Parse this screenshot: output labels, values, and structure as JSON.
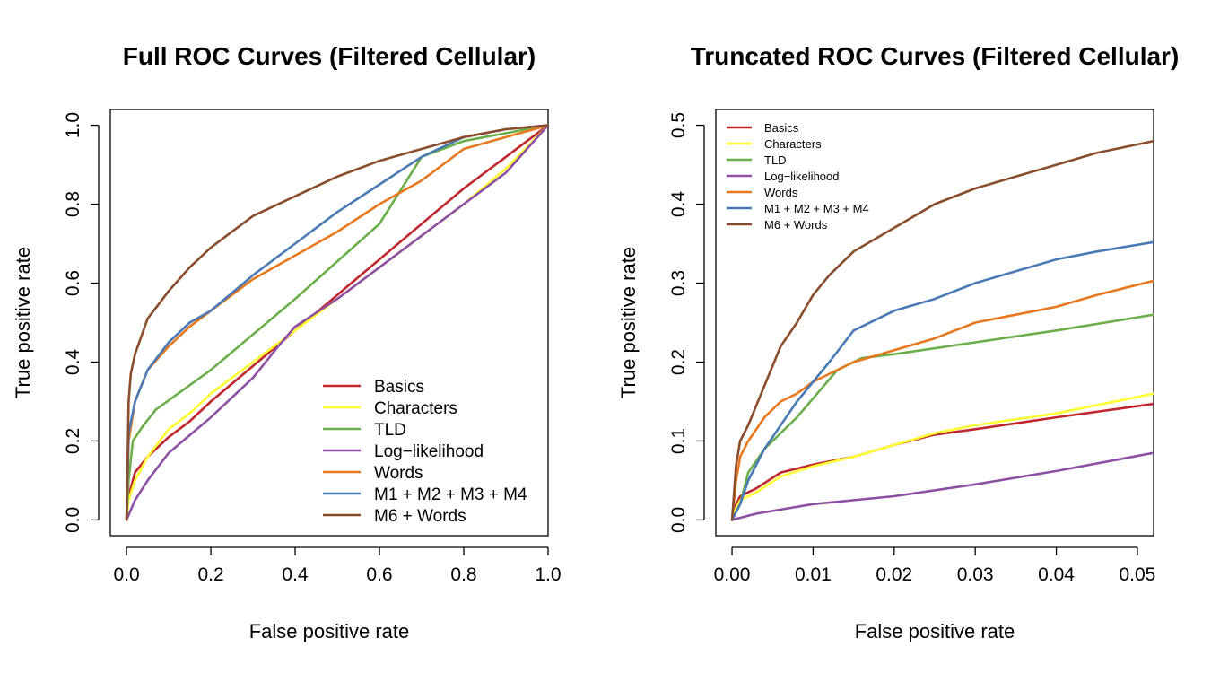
{
  "chart_data": [
    {
      "type": "line",
      "title": "Full ROC Curves (Filtered Cellular)",
      "xlabel": "False positive rate",
      "ylabel": "True positive rate",
      "xlim": [
        0,
        1
      ],
      "ylim": [
        0,
        1
      ],
      "xticks": [
        "0.0",
        "0.2",
        "0.4",
        "0.6",
        "0.8",
        "1.0"
      ],
      "yticks": [
        "0.0",
        "0.2",
        "0.4",
        "0.6",
        "0.8",
        "1.0"
      ],
      "legend_position": "bottom-right",
      "grid": false,
      "series": [
        {
          "name": "Basics",
          "color": "#c0272d",
          "points": [
            [
              0,
              0
            ],
            [
              0.005,
              0.06
            ],
            [
              0.02,
              0.12
            ],
            [
              0.05,
              0.16
            ],
            [
              0.1,
              0.21
            ],
            [
              0.15,
              0.25
            ],
            [
              0.2,
              0.3
            ],
            [
              0.3,
              0.39
            ],
            [
              0.4,
              0.48
            ],
            [
              0.5,
              0.57
            ],
            [
              0.6,
              0.66
            ],
            [
              0.7,
              0.75
            ],
            [
              0.8,
              0.84
            ],
            [
              0.9,
              0.92
            ],
            [
              1,
              1
            ]
          ]
        },
        {
          "name": "Characters",
          "color": "#ffff33",
          "points": [
            [
              0,
              0
            ],
            [
              0.005,
              0.05
            ],
            [
              0.02,
              0.1
            ],
            [
              0.05,
              0.16
            ],
            [
              0.1,
              0.23
            ],
            [
              0.15,
              0.27
            ],
            [
              0.2,
              0.32
            ],
            [
              0.3,
              0.4
            ],
            [
              0.4,
              0.48
            ],
            [
              0.5,
              0.56
            ],
            [
              0.6,
              0.64
            ],
            [
              0.7,
              0.72
            ],
            [
              0.8,
              0.8
            ],
            [
              0.9,
              0.89
            ],
            [
              1,
              1
            ]
          ]
        },
        {
          "name": "TLD",
          "color": "#6aaf4a",
          "points": [
            [
              0,
              0
            ],
            [
              0.005,
              0.1
            ],
            [
              0.015,
              0.2
            ],
            [
              0.04,
              0.24
            ],
            [
              0.07,
              0.28
            ],
            [
              0.2,
              0.38
            ],
            [
              0.4,
              0.56
            ],
            [
              0.6,
              0.75
            ],
            [
              0.7,
              0.92
            ],
            [
              0.8,
              0.96
            ],
            [
              0.9,
              0.98
            ],
            [
              1,
              1
            ]
          ]
        },
        {
          "name": "Log−likelihood",
          "color": "#8e4fa4",
          "points": [
            [
              0,
              0
            ],
            [
              0.02,
              0.05
            ],
            [
              0.05,
              0.1
            ],
            [
              0.1,
              0.17
            ],
            [
              0.2,
              0.26
            ],
            [
              0.3,
              0.36
            ],
            [
              0.36,
              0.44
            ],
            [
              0.4,
              0.49
            ],
            [
              0.5,
              0.56
            ],
            [
              0.6,
              0.64
            ],
            [
              0.7,
              0.72
            ],
            [
              0.8,
              0.8
            ],
            [
              0.9,
              0.88
            ],
            [
              1,
              1
            ]
          ]
        },
        {
          "name": "Words",
          "color": "#e8781e",
          "points": [
            [
              0,
              0
            ],
            [
              0.005,
              0.2
            ],
            [
              0.02,
              0.3
            ],
            [
              0.05,
              0.38
            ],
            [
              0.1,
              0.44
            ],
            [
              0.15,
              0.49
            ],
            [
              0.2,
              0.53
            ],
            [
              0.3,
              0.61
            ],
            [
              0.4,
              0.67
            ],
            [
              0.5,
              0.73
            ],
            [
              0.6,
              0.8
            ],
            [
              0.7,
              0.86
            ],
            [
              0.8,
              0.94
            ],
            [
              0.9,
              0.97
            ],
            [
              1,
              1
            ]
          ]
        },
        {
          "name": "M1 + M2 + M3 + M4",
          "color": "#4a7ab5",
          "points": [
            [
              0,
              0
            ],
            [
              0.005,
              0.22
            ],
            [
              0.02,
              0.3
            ],
            [
              0.05,
              0.38
            ],
            [
              0.1,
              0.45
            ],
            [
              0.15,
              0.5
            ],
            [
              0.2,
              0.53
            ],
            [
              0.3,
              0.62
            ],
            [
              0.4,
              0.7
            ],
            [
              0.5,
              0.78
            ],
            [
              0.6,
              0.85
            ],
            [
              0.7,
              0.92
            ],
            [
              0.8,
              0.97
            ],
            [
              0.9,
              0.99
            ],
            [
              1,
              1
            ]
          ]
        },
        {
          "name": "M6 + Words",
          "color": "#8b4c2c",
          "points": [
            [
              0,
              0
            ],
            [
              0.005,
              0.3
            ],
            [
              0.01,
              0.37
            ],
            [
              0.02,
              0.42
            ],
            [
              0.05,
              0.51
            ],
            [
              0.1,
              0.58
            ],
            [
              0.15,
              0.64
            ],
            [
              0.2,
              0.69
            ],
            [
              0.3,
              0.77
            ],
            [
              0.4,
              0.82
            ],
            [
              0.5,
              0.87
            ],
            [
              0.6,
              0.91
            ],
            [
              0.7,
              0.94
            ],
            [
              0.8,
              0.97
            ],
            [
              0.9,
              0.99
            ],
            [
              1,
              1
            ]
          ]
        }
      ]
    },
    {
      "type": "line",
      "title": "Truncated ROC Curves (Filtered Cellular)",
      "xlabel": "False positive rate",
      "ylabel": "True positive rate",
      "xlim": [
        0,
        0.052
      ],
      "ylim": [
        0,
        0.5
      ],
      "xticks": [
        "0.00",
        "0.01",
        "0.02",
        "0.03",
        "0.04",
        "0.05"
      ],
      "yticks": [
        "0.0",
        "0.1",
        "0.2",
        "0.3",
        "0.4",
        "0.5"
      ],
      "legend_position": "top-left",
      "grid": false,
      "series": [
        {
          "name": "Basics",
          "color": "#c0272d",
          "points": [
            [
              0,
              0
            ],
            [
              0.0005,
              0.02
            ],
            [
              0.001,
              0.03
            ],
            [
              0.003,
              0.04
            ],
            [
              0.006,
              0.06
            ],
            [
              0.01,
              0.07
            ],
            [
              0.015,
              0.08
            ],
            [
              0.02,
              0.095
            ],
            [
              0.025,
              0.108
            ],
            [
              0.03,
              0.115
            ],
            [
              0.04,
              0.13
            ],
            [
              0.052,
              0.147
            ]
          ]
        },
        {
          "name": "Characters",
          "color": "#ffff33",
          "points": [
            [
              0,
              0
            ],
            [
              0.0005,
              0.015
            ],
            [
              0.001,
              0.025
            ],
            [
              0.003,
              0.035
            ],
            [
              0.006,
              0.055
            ],
            [
              0.01,
              0.068
            ],
            [
              0.015,
              0.08
            ],
            [
              0.02,
              0.095
            ],
            [
              0.025,
              0.11
            ],
            [
              0.03,
              0.12
            ],
            [
              0.04,
              0.135
            ],
            [
              0.052,
              0.16
            ]
          ]
        },
        {
          "name": "TLD",
          "color": "#6aaf4a",
          "points": [
            [
              0,
              0
            ],
            [
              0.001,
              0.02
            ],
            [
              0.002,
              0.06
            ],
            [
              0.004,
              0.09
            ],
            [
              0.008,
              0.13
            ],
            [
              0.013,
              0.19
            ],
            [
              0.016,
              0.205
            ],
            [
              0.02,
              0.21
            ],
            [
              0.03,
              0.225
            ],
            [
              0.04,
              0.24
            ],
            [
              0.052,
              0.26
            ]
          ]
        },
        {
          "name": "Log−likelihood",
          "color": "#8e4fa4",
          "points": [
            [
              0,
              0
            ],
            [
              0.003,
              0.008
            ],
            [
              0.01,
              0.02
            ],
            [
              0.02,
              0.03
            ],
            [
              0.03,
              0.045
            ],
            [
              0.04,
              0.062
            ],
            [
              0.052,
              0.085
            ]
          ]
        },
        {
          "name": "Words",
          "color": "#e8781e",
          "points": [
            [
              0,
              0
            ],
            [
              0.0005,
              0.05
            ],
            [
              0.001,
              0.08
            ],
            [
              0.002,
              0.1
            ],
            [
              0.004,
              0.13
            ],
            [
              0.006,
              0.15
            ],
            [
              0.008,
              0.16
            ],
            [
              0.01,
              0.175
            ],
            [
              0.015,
              0.2
            ],
            [
              0.02,
              0.215
            ],
            [
              0.025,
              0.23
            ],
            [
              0.03,
              0.25
            ],
            [
              0.035,
              0.26
            ],
            [
              0.04,
              0.27
            ],
            [
              0.045,
              0.285
            ],
            [
              0.052,
              0.303
            ]
          ]
        },
        {
          "name": "M1 + M2 + M3 + M4",
          "color": "#4a7ab5",
          "points": [
            [
              0,
              0
            ],
            [
              0.001,
              0.02
            ],
            [
              0.002,
              0.05
            ],
            [
              0.004,
              0.09
            ],
            [
              0.006,
              0.12
            ],
            [
              0.008,
              0.15
            ],
            [
              0.01,
              0.175
            ],
            [
              0.012,
              0.2
            ],
            [
              0.015,
              0.24
            ],
            [
              0.02,
              0.265
            ],
            [
              0.025,
              0.28
            ],
            [
              0.03,
              0.3
            ],
            [
              0.035,
              0.315
            ],
            [
              0.04,
              0.33
            ],
            [
              0.045,
              0.34
            ],
            [
              0.052,
              0.352
            ]
          ]
        },
        {
          "name": "M6 + Words",
          "color": "#8b4c2c",
          "points": [
            [
              0,
              0
            ],
            [
              0.0005,
              0.07
            ],
            [
              0.001,
              0.1
            ],
            [
              0.002,
              0.12
            ],
            [
              0.004,
              0.17
            ],
            [
              0.006,
              0.22
            ],
            [
              0.008,
              0.25
            ],
            [
              0.01,
              0.285
            ],
            [
              0.012,
              0.31
            ],
            [
              0.015,
              0.34
            ],
            [
              0.02,
              0.37
            ],
            [
              0.025,
              0.4
            ],
            [
              0.03,
              0.42
            ],
            [
              0.035,
              0.435
            ],
            [
              0.04,
              0.45
            ],
            [
              0.045,
              0.465
            ],
            [
              0.052,
              0.48
            ]
          ]
        }
      ]
    }
  ]
}
